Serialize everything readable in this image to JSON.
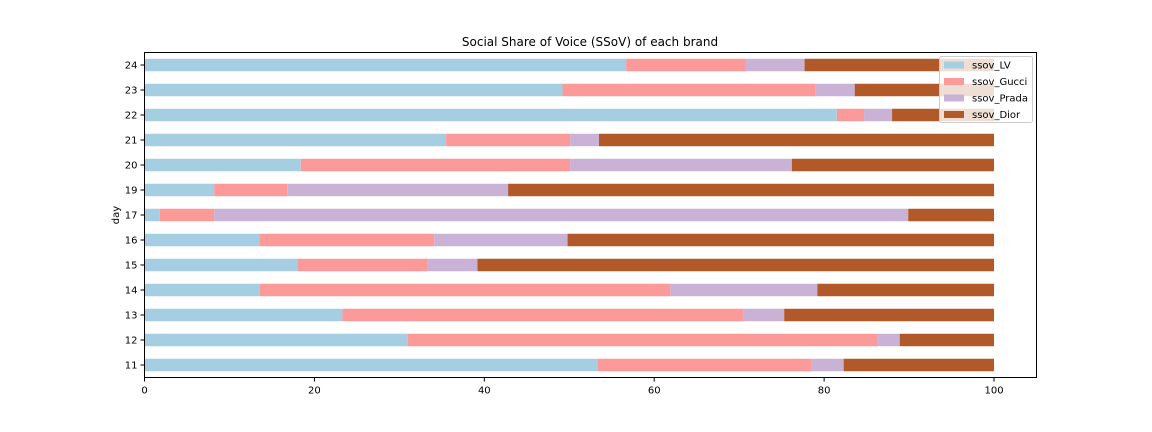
{
  "chart_data": {
    "type": "bar",
    "orientation": "horizontal",
    "stacked": true,
    "title": "Social Share of Voice (SSoV) of each brand",
    "xlabel": "",
    "ylabel": "day",
    "xlim": [
      0,
      105
    ],
    "xticks": [
      0,
      20,
      40,
      60,
      80,
      100
    ],
    "legend_position": "top-right",
    "grid": false,
    "categories": [
      "11",
      "12",
      "13",
      "14",
      "15",
      "16",
      "17",
      "19",
      "20",
      "21",
      "22",
      "23",
      "24"
    ],
    "series": [
      {
        "name": "ssov_LV",
        "color": "#a6cee3",
        "values": [
          53.3,
          31.0,
          23.3,
          13.6,
          18.0,
          13.6,
          1.8,
          8.2,
          18.4,
          35.5,
          81.5,
          49.2,
          56.7
        ]
      },
      {
        "name": "ssov_Gucci",
        "color": "#fb9a99",
        "values": [
          25.2,
          55.3,
          47.2,
          48.3,
          15.3,
          20.5,
          6.4,
          8.6,
          31.7,
          14.6,
          3.2,
          29.8,
          14.1
        ]
      },
      {
        "name": "ssov_Prada",
        "color": "#cab2d6",
        "values": [
          3.8,
          2.6,
          4.8,
          17.3,
          5.9,
          15.7,
          81.7,
          26.0,
          26.1,
          3.4,
          3.3,
          4.6,
          6.9
        ]
      },
      {
        "name": "ssov_Dior",
        "color": "#b15928",
        "values": [
          17.7,
          11.1,
          24.7,
          20.8,
          60.8,
          50.2,
          10.1,
          57.2,
          23.8,
          46.5,
          12.0,
          16.4,
          22.3
        ]
      }
    ]
  }
}
